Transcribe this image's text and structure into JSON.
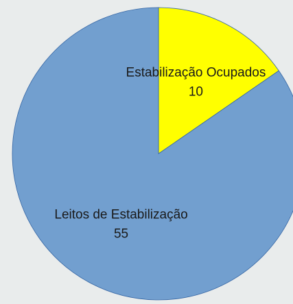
{
  "chart_data": {
    "type": "pie",
    "categories": [
      "Estabilização Ocupados",
      "Leitos de Estabilização"
    ],
    "values": [
      10,
      55
    ],
    "colors": [
      "#ffff00",
      "#729fcf"
    ]
  }
}
